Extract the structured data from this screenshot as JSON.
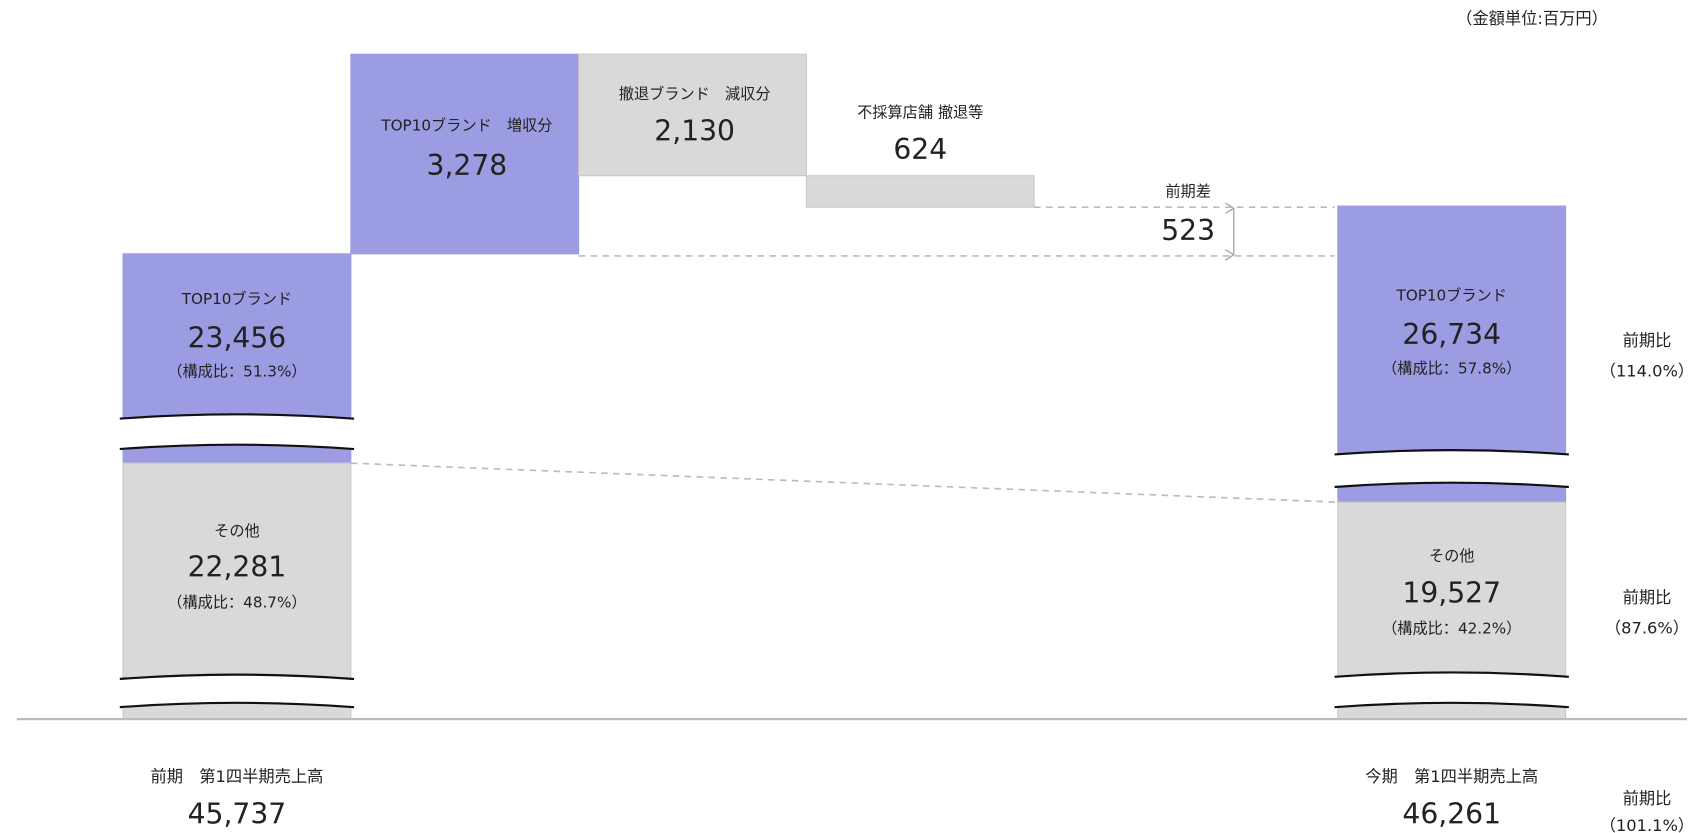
{
  "unit_note": "（金額単位:百万円）",
  "previous": {
    "top10": {
      "label": "TOP10ブランド",
      "value": "23,456",
      "share": "（構成比：51.3%）"
    },
    "other": {
      "label": "その他",
      "value": "22,281",
      "share": "（構成比：48.7%）"
    },
    "total": {
      "label": "前期　第1四半期売上高",
      "value": "45,737"
    }
  },
  "changes": [
    {
      "label": "TOP10ブランド　増収分",
      "value": "3,278"
    },
    {
      "label": "撤退ブランド　減収分",
      "value": "2,130"
    },
    {
      "label": "不採算店舗 撤退等",
      "value": "624"
    }
  ],
  "difference": {
    "label": "前期差",
    "value": "523"
  },
  "current": {
    "top10": {
      "label": "TOP10ブランド",
      "value": "26,734",
      "share": "（構成比：57.8%）"
    },
    "other": {
      "label": "その他",
      "value": "19,527",
      "share": "（構成比：42.2%）"
    },
    "total": {
      "label": "今期　第1四半期売上高",
      "value": "46,261"
    }
  },
  "yoy": [
    {
      "label": "前期比",
      "value": "（114.0%）"
    },
    {
      "label": "前期比",
      "value": "（87.6%）"
    },
    {
      "label": "前期比",
      "value": "（101.1%）"
    }
  ]
}
